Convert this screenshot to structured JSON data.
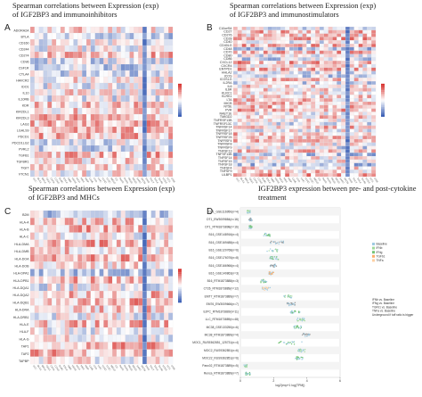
{
  "panels": {
    "a": {
      "letter": "A",
      "title": "Spearman correlations  between Expression (exp)\nof IGF2BP3 and immunoinhibitors"
    },
    "b": {
      "letter": "B",
      "title": "Spearman correlations  between Expression (exp)\nof IGF2BP3 and  immunostimulators"
    },
    "c": {
      "letter": "C",
      "title": "Spearman correlations  between Expression (exp)\nof IGF2BP3 and MHCs"
    },
    "d": {
      "letter": "D",
      "title": "IGF2BP3 expression between pre- and post-cytokine\ntreatment"
    }
  },
  "colors": {
    "positive": "#d7302c",
    "negative": "#3b5fb5",
    "neutral": "#ffffff",
    "grid": "#e2e2e2"
  },
  "chart_data": [
    {
      "type": "heatmap",
      "panel": "A",
      "rows": [
        "ADORA2A",
        "BTLA",
        "CD160",
        "CD244",
        "CD274",
        "CD96",
        "CSF1R",
        "CTLA4",
        "HAVCR2",
        "IDO1",
        "IL10",
        "IL10RB",
        "KDR",
        "KIR2DL1",
        "KIR2DL3",
        "LAG3",
        "LGALS9",
        "PDCD1",
        "PDCD1LG2",
        "PVRL2",
        "TGFB1",
        "TGFBR1",
        "TIGIT",
        "VTCN1"
      ],
      "columns": [
        "ACC",
        "BLCA",
        "BRCA",
        "CESC",
        "CHOL",
        "COAD",
        "DLBC",
        "ESCA",
        "GBM",
        "HNSC",
        "KICH",
        "KIRC",
        "KIRP",
        "LAML",
        "LGG",
        "LIHC",
        "LUAD",
        "LUSC",
        "MESO",
        "OV",
        "PAAD",
        "PCPG",
        "PRAD",
        "READ",
        "SARC",
        "SKCM",
        "STAD",
        "TGCT",
        "THCA",
        "THYM",
        "UCEC",
        "UCS",
        "UVM"
      ],
      "strong_negative_columns": [
        26
      ],
      "scale": [
        -1,
        1
      ]
    },
    {
      "type": "heatmap",
      "panel": "B",
      "rows": [
        "C10orf54",
        "CD27",
        "CD276",
        "CD28",
        "CD40",
        "CD40LG",
        "CD48",
        "CD70",
        "CD80",
        "CD86",
        "CXCL12",
        "CXCR4",
        "ENTPD1",
        "HHLA2",
        "ICOS",
        "ICOSLG",
        "IL2RA",
        "IL6",
        "IL6R",
        "KLRC1",
        "KLRK1",
        "LTA",
        "MICB",
        "NT5E",
        "PVR",
        "RAET1E",
        "TMIGD2",
        "TNFRSF13B",
        "TNFRSF13C",
        "TNFRSF14",
        "TNFRSF17",
        "TNFRSF18",
        "TNFRSF25",
        "TNFRSF4",
        "TNFRSF8",
        "TNFRSF9",
        "TNFSF13",
        "TNFSF13B",
        "TNFSF14",
        "TNFSF15",
        "TNFSF18",
        "TNFSF4",
        "TNFSF9",
        "ULBP1"
      ],
      "columns": [
        "ACC",
        "BLCA",
        "BRCA",
        "CESC",
        "CHOL",
        "COAD",
        "DLBC",
        "ESCA",
        "GBM",
        "HNSC",
        "KICH",
        "KIRC",
        "KIRP",
        "LAML",
        "LGG",
        "LIHC",
        "LUAD",
        "LUSC",
        "MESO",
        "OV",
        "PAAD",
        "PCPG",
        "PRAD",
        "READ",
        "SARC",
        "SKCM",
        "STAD",
        "TGCT",
        "THCA",
        "THYM",
        "UCEC",
        "UCS",
        "UVM"
      ],
      "strong_negative_columns": [
        26
      ],
      "scale": [
        -1,
        1
      ]
    },
    {
      "type": "heatmap",
      "panel": "C",
      "rows": [
        "B2M",
        "HLA-A",
        "HLA-B",
        "HLA-C",
        "HLA-DMA",
        "HLA-DMB",
        "HLA-DOA",
        "HLA-DOB",
        "HLA-DPA1",
        "HLA-DPB1",
        "HLA-DQA1",
        "HLA-DQA2",
        "HLA-DQB1",
        "HLA-DRA",
        "HLA-DRB1",
        "HLA-E",
        "HLA-F",
        "HLA-G",
        "TAP1",
        "TAP2",
        "TAPBP"
      ],
      "columns": [
        "ACC",
        "BLCA",
        "BRCA",
        "CESC",
        "CHOL",
        "COAD",
        "DLBC",
        "ESCA",
        "GBM",
        "HNSC",
        "KICH",
        "KIRC",
        "KIRP",
        "LAML",
        "LGG",
        "LIHC",
        "LUAD",
        "LUSC",
        "MESO",
        "OV",
        "PAAD",
        "PCPG",
        "PRAD",
        "READ",
        "SARC",
        "SKCM",
        "STAD",
        "TGCT",
        "THCA",
        "THYM",
        "UCEC",
        "UCS",
        "UVM"
      ],
      "strong_negative_columns": [
        26
      ],
      "scale": [
        -1,
        1
      ]
    },
    {
      "type": "scatter",
      "panel": "D",
      "datasets": [
        {
          "label": "DT1_GSE116950(n=4)",
          "treatment": "IFNb",
          "x": [
            0.4,
            0.6
          ]
        },
        {
          "label": "DT1_EW3009884(n=16)",
          "treatment": "IFNa",
          "x": [
            0.5,
            0.7
          ]
        },
        {
          "label": "DT1_RTM1873898(n=16)",
          "treatment": "IFNg",
          "x": [
            0.5,
            0.7
          ]
        },
        {
          "label": "B16_GSE148916(n=4)",
          "treatment": "IFNg",
          "x": [
            1.4,
            1.8
          ]
        },
        {
          "label": "B16_GSE169488(n=4)",
          "treatment": "IFNa",
          "x": [
            1.8,
            2.6
          ]
        },
        {
          "label": "B16_GSE120768(n=6)",
          "treatment": "IFNb",
          "x": [
            1.6,
            2.3
          ]
        },
        {
          "label": "B16_GSE176076(n=8)",
          "treatment": "IFNg",
          "x": [
            1.7,
            2.3
          ]
        },
        {
          "label": "B16_GSE166966(n=4)",
          "treatment": "IFNa",
          "x": [
            1.8,
            2.2
          ]
        },
        {
          "label": "B16_GSE140863(n=3)",
          "treatment": "TGFb1",
          "x": [
            1.7,
            2.0
          ]
        },
        {
          "label": "B16_RTM1873888(n=3)",
          "treatment": "IFNg",
          "x": [
            1.2,
            1.6
          ]
        },
        {
          "label": "CT26_RTM1873889(n=12)",
          "treatment": "TNFa",
          "x": [
            1.3,
            1.8
          ]
        },
        {
          "label": "EMT7_RTM1873889(n=7)",
          "treatment": "IFNb",
          "x": [
            2.6,
            3.1
          ]
        },
        {
          "label": "EM76_EW3009666(n=7)",
          "treatment": "IFNa",
          "x": [
            2.8,
            3.3
          ]
        },
        {
          "label": "EJPC_RTM1873889(n=11)",
          "treatment": "IFNg",
          "x": [
            3.0,
            3.6
          ]
        },
        {
          "label": "LLC_RTM1873889(n=48)",
          "treatment": "IFNb",
          "x": [
            3.4,
            3.9
          ]
        },
        {
          "label": "MC38_GSE133250(n=6)",
          "treatment": "IFNg",
          "x": [
            3.2,
            3.7
          ]
        },
        {
          "label": "MC38_RTM1873889(n=4)",
          "treatment": "IFNa",
          "x": [
            3.7,
            4.2
          ]
        },
        {
          "label": "MOC1_RUS9362851_125731(n=4)",
          "treatment": "IFNg",
          "x": [
            2.2,
            3.8
          ]
        },
        {
          "label": "MOC2_RUS9362851(n=6)",
          "treatment": "IFNb",
          "x": [
            3.4,
            3.9
          ]
        },
        {
          "label": "MOC22_RUS9362851(n=6)",
          "treatment": "IFNg",
          "x": [
            3.3,
            3.8
          ]
        },
        {
          "label": "Panc02_RTM1873889(n=5)",
          "treatment": "IFNb",
          "x": [
            0.2,
            0.4
          ]
        },
        {
          "label": "Renca_RTM1873889(n=7)",
          "treatment": "IFNg",
          "x": [
            0.3,
            0.6
          ]
        }
      ],
      "legend": [
        {
          "name": "Baseline",
          "color": "#9ecae1"
        },
        {
          "name": "IFNb",
          "color": "#a1d99b"
        },
        {
          "name": "IFNg",
          "color": "#74c476"
        },
        {
          "name": "TGFb1",
          "color": "#fdae6b"
        },
        {
          "name": "TNFa",
          "color": "#fdd0a2"
        }
      ],
      "legend_b": [
        "IFNb vs. Baseline",
        "IFNg vs. Baseline",
        "TGFb1 vs. Baseline",
        "TNFa vs. Baseline",
        "Underground if tuff ratio is bigger"
      ],
      "xticks": [
        "0",
        "2",
        "4",
        "6"
      ],
      "xlim": [
        0,
        6
      ],
      "xlabel": "log2(exp+1 log(TPM))"
    }
  ]
}
